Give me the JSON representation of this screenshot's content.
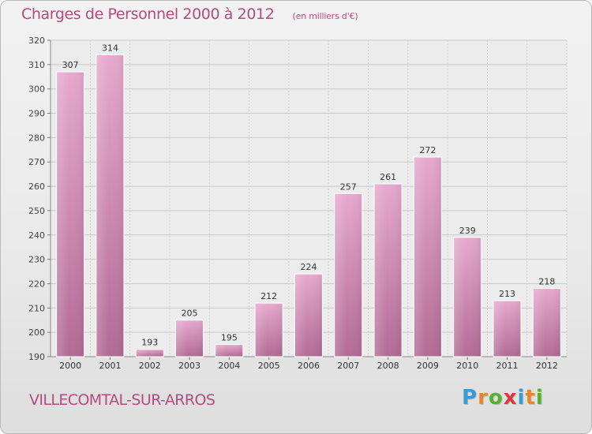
{
  "title": "Charges de Personnel 2000 à 2012",
  "subtitle": "(en milliers d'€)",
  "commune": "VILLECOMTAL-SUR-ARROS",
  "logo": {
    "letters": [
      "P",
      "r",
      "o",
      "x",
      "i",
      "t",
      "i"
    ],
    "colors": [
      "#3a9ad9",
      "#e8862a",
      "#57b031",
      "#d93a3a",
      "#3a9ad9",
      "#e8862a",
      "#57b031"
    ]
  },
  "colors": {
    "accent": "#b24c80",
    "bar_light": "#e6a9cd",
    "bar_dark": "#b26b95"
  },
  "chart_data": {
    "type": "bar",
    "title": "Charges de Personnel 2000 à 2012",
    "subtitle": "(en milliers d'€)",
    "categories": [
      "2000",
      "2001",
      "2002",
      "2003",
      "2004",
      "2005",
      "2006",
      "2007",
      "2008",
      "2009",
      "2010",
      "2011",
      "2012"
    ],
    "values": [
      307,
      314,
      193,
      205,
      195,
      212,
      224,
      257,
      261,
      272,
      239,
      213,
      218
    ],
    "ylim": [
      190,
      320
    ],
    "yticks": [
      190,
      200,
      210,
      220,
      230,
      240,
      250,
      260,
      270,
      280,
      290,
      300,
      310,
      320
    ],
    "grid": true,
    "data_labels": true
  }
}
